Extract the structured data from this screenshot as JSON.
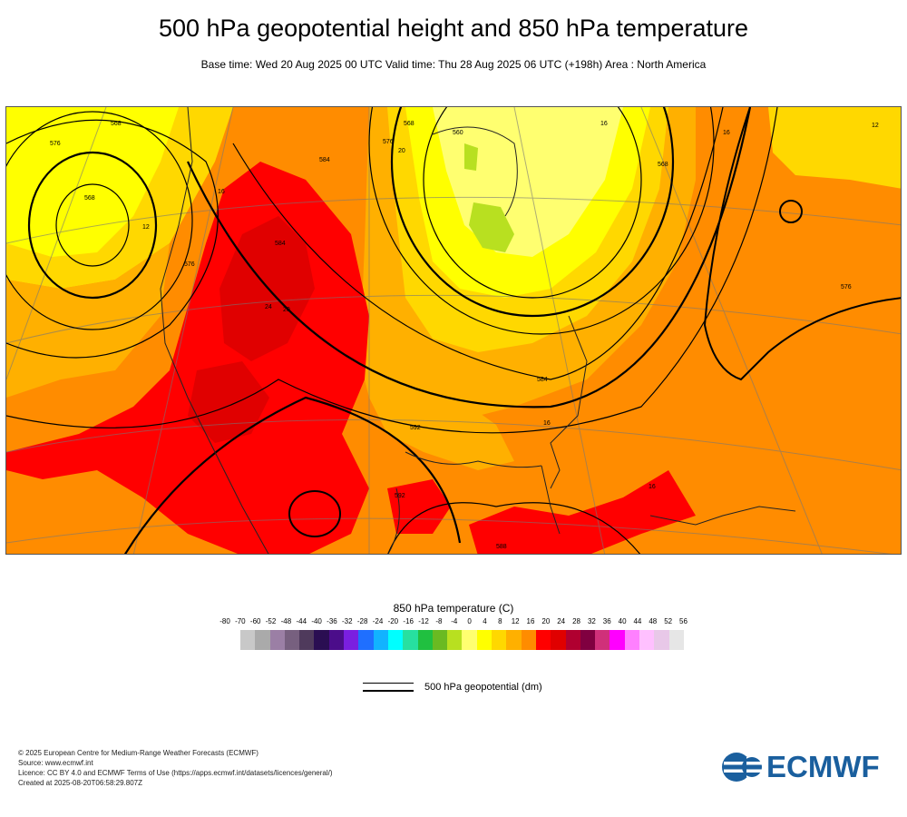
{
  "header": {
    "title": "500 hPa geopotential height and 850 hPa temperature",
    "subtitle": "Base time: Wed 20 Aug 2025 00 UTC Valid time: Thu 28 Aug 2025 06 UTC (+198h) Area : North America"
  },
  "map": {
    "contour_labels": [
      "568",
      "576",
      "568",
      "576",
      "584",
      "576",
      "568",
      "560",
      "568",
      "576",
      "584",
      "592",
      "584",
      "592",
      "588",
      "12",
      "16",
      "12",
      "16",
      "24",
      "20",
      "16",
      "16",
      "20",
      "16",
      "16",
      "20",
      "24",
      "28",
      "16",
      "20",
      "20"
    ]
  },
  "legend": {
    "temperature_title": "850 hPa temperature (C)",
    "ticks": [
      "-80",
      "-70",
      "-60",
      "-52",
      "-48",
      "-44",
      "-40",
      "-36",
      "-32",
      "-28",
      "-24",
      "-20",
      "-16",
      "-12",
      "-8",
      "-4",
      "0",
      "4",
      "8",
      "12",
      "16",
      "20",
      "24",
      "28",
      "32",
      "36",
      "40",
      "44",
      "48",
      "52",
      "56"
    ],
    "colors": [
      "#e6e6e6",
      "#c8c8c8",
      "#aaaaaa",
      "#9b7fa5",
      "#77607f",
      "#4f3a5c",
      "#2a0e52",
      "#4b0d8a",
      "#7a1fe0",
      "#1f6fff",
      "#12b3ff",
      "#00ffff",
      "#27e0a0",
      "#20c040",
      "#6aba22",
      "#b8e020",
      "#ffff70",
      "#ffff00",
      "#ffd800",
      "#ffb000",
      "#ff8c00",
      "#ff0000",
      "#e00000",
      "#b00030",
      "#800040",
      "#d0307a",
      "#ff00ff",
      "#ff80ff",
      "#ffc0ff",
      "#e8c8e8",
      "#e6e6e6"
    ],
    "geopotential_label": "500 hPa geopotential (dm)"
  },
  "footer": {
    "line1": "© 2025 European Centre for Medium-Range Weather Forecasts (ECMWF)",
    "line2": "Source: www.ecmwf.int",
    "line3": "Licence: CC BY 4.0 and ECMWF Terms of Use (https://apps.ecmwf.int/datasets/licences/general/)",
    "line4": "Created at 2025-08-20T06:58:29.807Z"
  },
  "logo": {
    "text": "ECMWF",
    "color": "#1a5f9e"
  }
}
